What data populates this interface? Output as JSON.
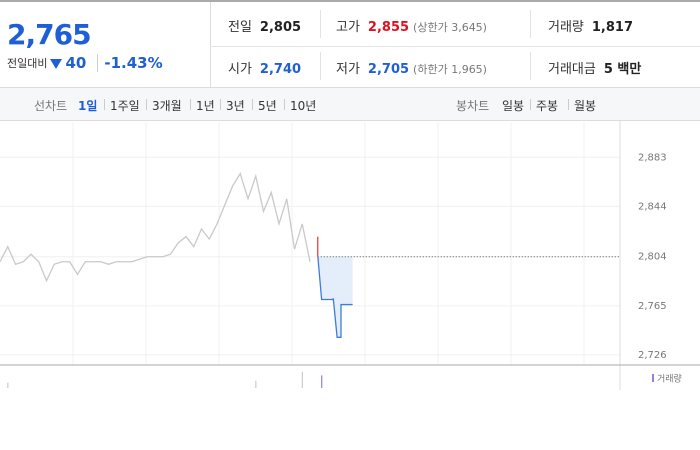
{
  "quote": {
    "price": "2,765",
    "change_label": "전일대비",
    "change": "40",
    "change_rate": "-1.43%"
  },
  "stats": [
    [
      {
        "label": "전일",
        "value": "2,805"
      },
      {
        "label": "고가",
        "value": "2,855",
        "note": "(상한가 3,645)"
      },
      {
        "label": "거래량",
        "value": "1,817"
      }
    ],
    [
      {
        "label": "시가",
        "value": "2,740"
      },
      {
        "label": "저가",
        "value": "2,705",
        "note": "(하한가 1,965)"
      },
      {
        "label": "거래대금",
        "value": "5 백만"
      }
    ]
  ],
  "tabs": {
    "line_label": "선차트",
    "line": [
      "1일",
      "1주일",
      "3개월",
      "1년",
      "3년",
      "5년",
      "10년"
    ],
    "candle_label": "봉차트",
    "candle": [
      "일봉",
      "주봉",
      "월봉"
    ]
  },
  "chart_data": {
    "type": "line",
    "xlim": [
      0,
      160
    ],
    "ylim": [
      2718,
      2911
    ],
    "yticks": [
      {
        "value": 2883,
        "label": "2,883"
      },
      {
        "value": 2844,
        "label": "2,844"
      },
      {
        "value": 2804,
        "label": "2,804"
      },
      {
        "value": 2765,
        "label": "2,765"
      },
      {
        "value": 2726,
        "label": "2,726"
      }
    ],
    "grid": true,
    "reference": 2804,
    "up_color": "#e8423f",
    "series": [
      {
        "color": "#c9c9c9",
        "x": [
          0,
          2,
          4,
          6,
          8,
          10,
          12,
          14,
          16,
          18,
          20,
          22,
          24,
          26,
          28,
          30,
          32,
          34,
          36,
          38,
          40,
          42,
          44,
          46,
          48,
          50,
          52,
          54,
          56,
          58,
          60,
          62,
          64,
          66,
          68,
          70,
          72,
          74,
          76,
          78,
          80
        ],
        "values": [
          2800,
          2812,
          2798,
          2800,
          2806,
          2800,
          2785,
          2798,
          2800,
          2800,
          2790,
          2800,
          2800,
          2800,
          2798,
          2800,
          2800,
          2800,
          2802,
          2804,
          2804,
          2804,
          2806,
          2815,
          2820,
          2812,
          2826,
          2818,
          2830,
          2845,
          2860,
          2870,
          2850,
          2868,
          2840,
          2855,
          2830,
          2850,
          2810,
          2830,
          2800
        ]
      },
      {
        "color": "#3d7bd9",
        "fill": "#e4eefb",
        "x": [
          82,
          82,
          83,
          86,
          86,
          87,
          88,
          88,
          91
        ],
        "values": [
          2820,
          2805,
          2770,
          2770,
          2771,
          2740,
          2740,
          2766,
          2766
        ]
      }
    ],
    "volume": {
      "label": "거래량",
      "color": "#9b7fd4",
      "x": [
        2,
        66,
        78,
        83
      ],
      "values": [
        300,
        400,
        900,
        700
      ],
      "colors": [
        "#cccccc",
        "#cccccc",
        "#cccccc",
        "#9b7fd4"
      ],
      "vlim": [
        0,
        1000
      ]
    }
  }
}
